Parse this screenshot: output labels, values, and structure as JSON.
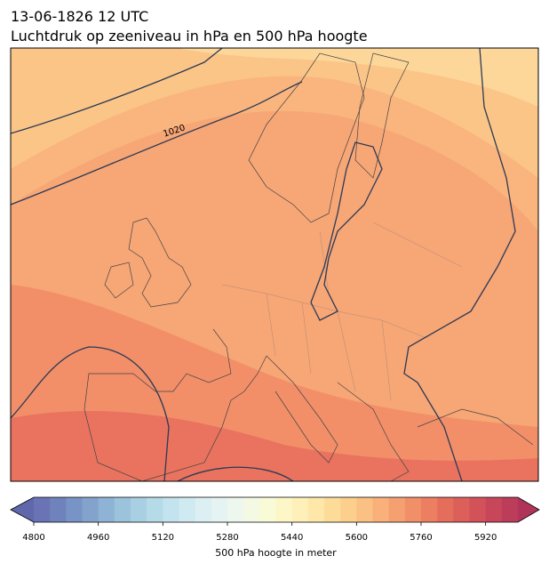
{
  "title": "13-06-1826 12 UTC",
  "subtitle": "Luchtdruk op zeeniveau in hPa en 500 hPa hoogte",
  "contour_labels": [
    "1020"
  ],
  "colorbar": {
    "label": "500 hPa hoogte in meter",
    "lim": [
      4800,
      6000
    ],
    "ticks": [
      4800,
      4960,
      5120,
      5280,
      5440,
      5600,
      5760,
      5920
    ],
    "colors": [
      "#6a73b5",
      "#6f82bc",
      "#7893c5",
      "#84a3cc",
      "#8fb3d4",
      "#9cc3dc",
      "#a9d0e2",
      "#b6dbe8",
      "#c3e3ee",
      "#d0eaf2",
      "#dcf0f4",
      "#e5f4f2",
      "#edf7ee",
      "#f4f9e3",
      "#f9fad6",
      "#fdf7c8",
      "#fef0b8",
      "#fee7a8",
      "#fddc9a",
      "#fccf8d",
      "#fbc083",
      "#f9b07a",
      "#f5a071",
      "#f18f69",
      "#ec7e62",
      "#e56d5c",
      "#dc5f5a",
      "#d35159",
      "#c84659",
      "#bc3d5a"
    ],
    "under_color": "#5e68ab",
    "over_color": "#b03459"
  }
}
